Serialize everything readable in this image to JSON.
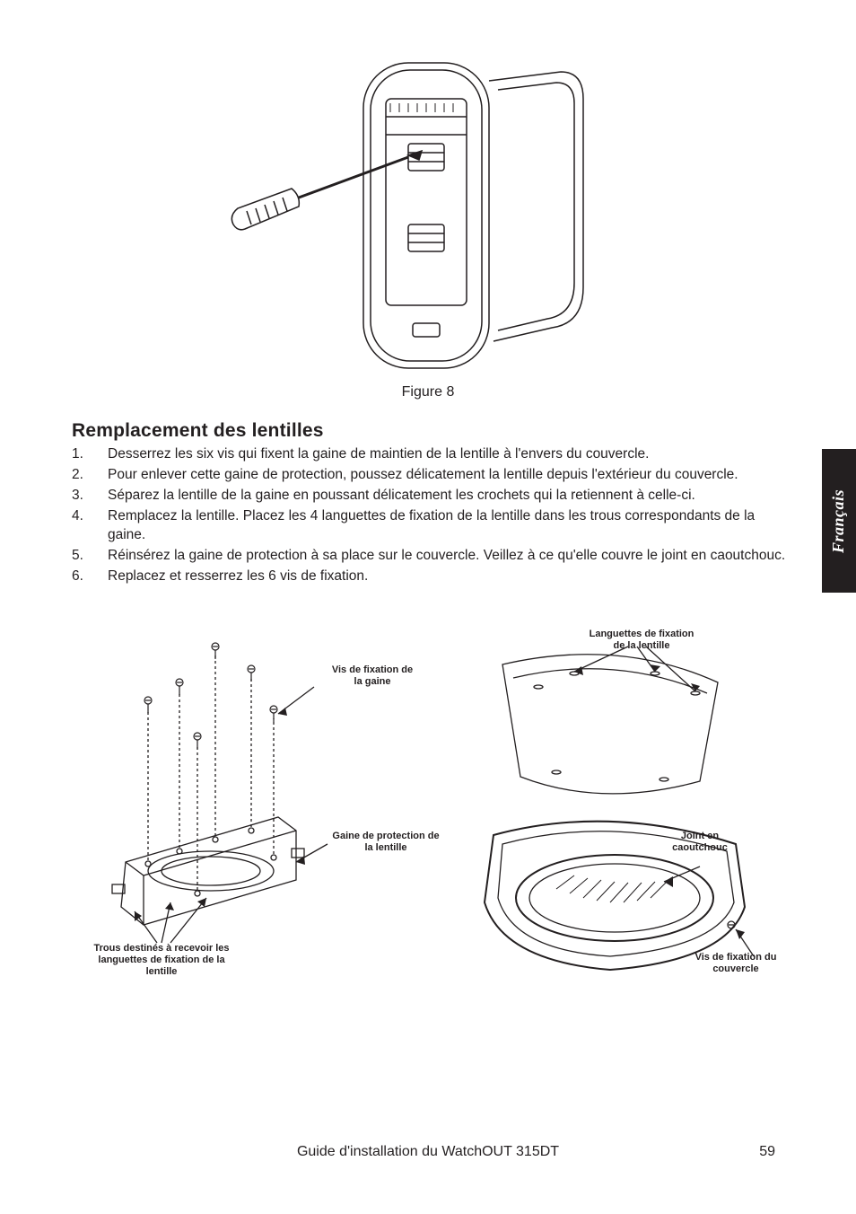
{
  "colors": {
    "ink": "#231f20",
    "bg": "#ffffff"
  },
  "figure_caption": "Figure 8",
  "heading": "Remplacement des lentilles",
  "steps": [
    {
      "n": "1.",
      "t": "Desserrez les six vis qui fixent la gaine de maintien de la lentille à l'envers du couvercle."
    },
    {
      "n": "2.",
      "t": "Pour enlever cette gaine de protection, poussez délicatement la lentille depuis l'extérieur du couvercle."
    },
    {
      "n": "3.",
      "t": "Séparez la lentille de la gaine en poussant délicatement les crochets qui la retiennent à celle-ci."
    },
    {
      "n": "4.",
      "t": "Remplacez la lentille. Placez les 4 languettes de fixation de la lentille dans les trous correspondants de la gaine."
    },
    {
      "n": "5.",
      "t": "Réinsérez la gaine de protection à sa place sur  le couvercle. Veillez à ce qu'elle couvre le joint en caoutchouc."
    },
    {
      "n": "6.",
      "t": "Replacez et resserrez les 6 vis de fixation."
    }
  ],
  "diagram_labels": {
    "vis_gaine": "Vis de fixation de\nla gaine",
    "gaine_protection": "Gaine de protection de\nla lentille",
    "trous_languettes": "Trous destinés à recevoir les\nlanguettes de fixation de la\nlentille",
    "languettes_fixation": "Languettes de fixation\nde la lentille",
    "joint_caoutchouc": "Joint en\ncaoutchouc",
    "vis_couvercle": "Vis de fixation du\ncouvercle"
  },
  "side_tab": "Français",
  "footer_title": "Guide d'installation du WatchOUT 315DT",
  "page_number": "59",
  "fontsizes": {
    "body": 15.5,
    "heading": 21,
    "caption": 16,
    "diagram_label": 11,
    "side_tab": 18
  }
}
